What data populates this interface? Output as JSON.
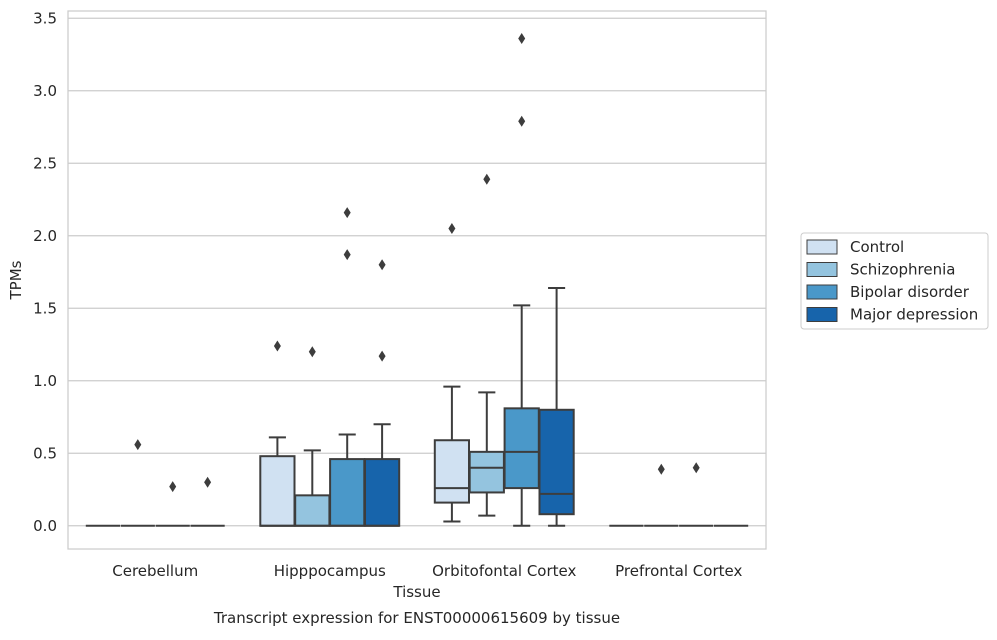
{
  "chart_data": {
    "type": "box",
    "title": "Transcript expression for ENST00000615609 by tissue",
    "xlabel": "Tissue",
    "ylabel": "TPMs",
    "ylim": [
      -0.16,
      3.55
    ],
    "yticks": [
      0.0,
      0.5,
      1.0,
      1.5,
      2.0,
      2.5,
      3.0,
      3.5
    ],
    "ytick_labels": [
      "0.0",
      "0.5",
      "1.0",
      "1.5",
      "2.0",
      "2.5",
      "3.0",
      "3.5"
    ],
    "categories": [
      "Cerebellum",
      "Hipppocampus",
      "Orbitofontal Cortex",
      "Prefrontal Cortex"
    ],
    "grid": "horizontal",
    "legend_position": "right",
    "series": [
      {
        "name": "Control",
        "color": "#d0e1f2",
        "boxes": [
          {
            "category": "Cerebellum",
            "whisker_low": 0,
            "q1": 0,
            "median": 0,
            "q3": 0,
            "whisker_high": 0,
            "outliers": []
          },
          {
            "category": "Hipppocampus",
            "whisker_low": 0,
            "q1": 0,
            "median": 0,
            "q3": 0.48,
            "whisker_high": 0.61,
            "outliers": [
              1.24
            ]
          },
          {
            "category": "Orbitofontal Cortex",
            "whisker_low": 0.03,
            "q1": 0.16,
            "median": 0.26,
            "q3": 0.59,
            "whisker_high": 0.96,
            "outliers": [
              2.05
            ]
          },
          {
            "category": "Prefrontal Cortex",
            "whisker_low": 0,
            "q1": 0,
            "median": 0,
            "q3": 0,
            "whisker_high": 0,
            "outliers": []
          }
        ]
      },
      {
        "name": "Schizophrenia",
        "color": "#94c4df",
        "boxes": [
          {
            "category": "Cerebellum",
            "whisker_low": 0,
            "q1": 0,
            "median": 0,
            "q3": 0,
            "whisker_high": 0,
            "outliers": [
              0.56
            ]
          },
          {
            "category": "Hipppocampus",
            "whisker_low": 0,
            "q1": 0,
            "median": 0,
            "q3": 0.21,
            "whisker_high": 0.52,
            "outliers": [
              1.2
            ]
          },
          {
            "category": "Orbitofontal Cortex",
            "whisker_low": 0.07,
            "q1": 0.23,
            "median": 0.4,
            "q3": 0.51,
            "whisker_high": 0.92,
            "outliers": [
              2.39
            ]
          },
          {
            "category": "Prefrontal Cortex",
            "whisker_low": 0,
            "q1": 0,
            "median": 0,
            "q3": 0,
            "whisker_high": 0,
            "outliers": [
              0.39
            ]
          }
        ]
      },
      {
        "name": "Bipolar disorder",
        "color": "#4a98c9",
        "boxes": [
          {
            "category": "Cerebellum",
            "whisker_low": 0,
            "q1": 0,
            "median": 0,
            "q3": 0,
            "whisker_high": 0,
            "outliers": [
              0.27
            ]
          },
          {
            "category": "Hipppocampus",
            "whisker_low": 0,
            "q1": 0,
            "median": 0,
            "q3": 0.46,
            "whisker_high": 0.63,
            "outliers": [
              1.87,
              2.16
            ]
          },
          {
            "category": "Orbitofontal Cortex",
            "whisker_low": 0,
            "q1": 0.26,
            "median": 0.51,
            "q3": 0.81,
            "whisker_high": 1.52,
            "outliers": [
              2.79,
              3.36
            ]
          },
          {
            "category": "Prefrontal Cortex",
            "whisker_low": 0,
            "q1": 0,
            "median": 0,
            "q3": 0,
            "whisker_high": 0,
            "outliers": [
              0.4
            ]
          }
        ]
      },
      {
        "name": "Major depression",
        "color": "#1764ab",
        "boxes": [
          {
            "category": "Cerebellum",
            "whisker_low": 0,
            "q1": 0,
            "median": 0,
            "q3": 0,
            "whisker_high": 0,
            "outliers": [
              0.3
            ]
          },
          {
            "category": "Hipppocampus",
            "whisker_low": 0,
            "q1": 0,
            "median": 0,
            "q3": 0.46,
            "whisker_high": 0.7,
            "outliers": [
              1.17,
              1.8
            ]
          },
          {
            "category": "Orbitofontal Cortex",
            "whisker_low": 0,
            "q1": 0.08,
            "median": 0.22,
            "q3": 0.8,
            "whisker_high": 1.64,
            "outliers": []
          },
          {
            "category": "Prefrontal Cortex",
            "whisker_low": 0,
            "q1": 0,
            "median": 0,
            "q3": 0,
            "whisker_high": 0,
            "outliers": []
          }
        ]
      }
    ],
    "colors": {
      "grid": "#cccccc",
      "axes_frame": "#cccccc",
      "box_edge": "#3d3d3d",
      "text": "#262626"
    }
  }
}
